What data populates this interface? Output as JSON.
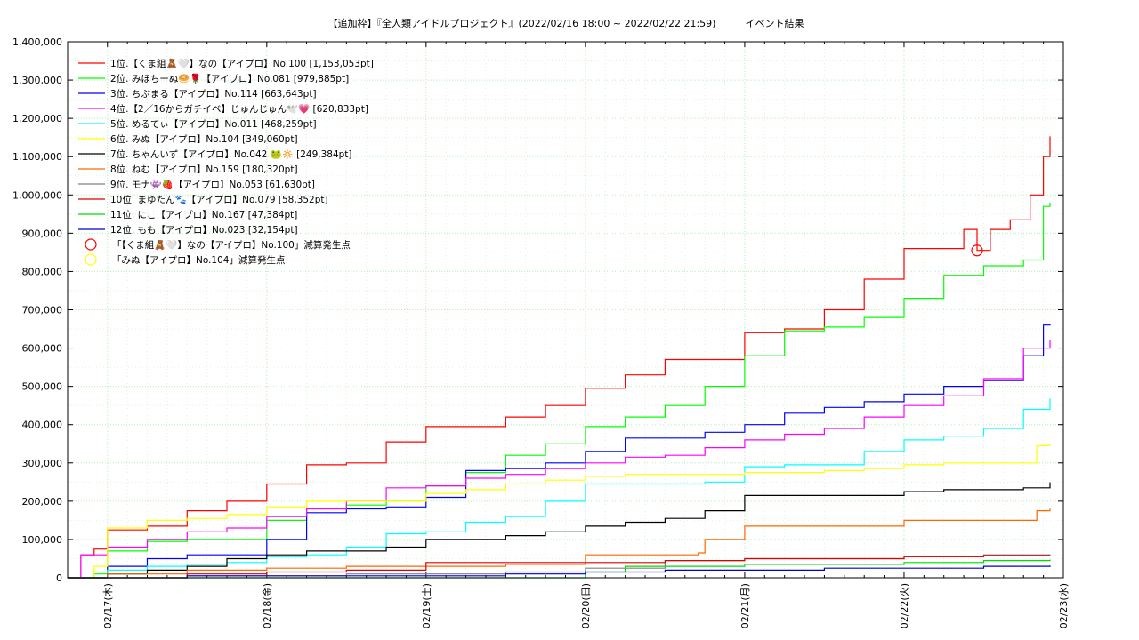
{
  "chart_data": {
    "type": "line",
    "title": "【追加枠】『全人類アイドルプロジェクト』(2022/02/16 18:00 ~ 2022/02/22 21:59)　　　イベント結果",
    "xlabel": "",
    "ylabel": "",
    "ylim": [
      0,
      1400000
    ],
    "yticks": [
      0,
      100000,
      200000,
      300000,
      400000,
      500000,
      600000,
      700000,
      800000,
      900000,
      1000000,
      1100000,
      1200000,
      1300000,
      1400000
    ],
    "ytick_labels": [
      "0",
      "100,000",
      "200,000",
      "300,000",
      "400,000",
      "500,000",
      "600,000",
      "700,000",
      "800,000",
      "900,000",
      "1,000,000",
      "1,100,000",
      "1,200,000",
      "1,300,000",
      "1,400,000"
    ],
    "xlim": [
      "2022/02/16 18:00",
      "2022/02/23 00:00"
    ],
    "xticks": [
      "2022/02/17 00:00",
      "2022/02/18 00:00",
      "2022/02/19 00:00",
      "2022/02/20 00:00",
      "2022/02/21 00:00",
      "2022/02/22 00:00",
      "2022/02/23 00:00"
    ],
    "xtick_labels": [
      "02/17(木)",
      "02/18(金)",
      "02/19(土)",
      "02/20(日)",
      "02/21(月)",
      "02/22(火)",
      "02/23(水)"
    ],
    "grid": true,
    "legend_position": "top-left",
    "series": [
      {
        "name": "1位.【くま組🧸🤍】なの【アイプロ】No.100 [1,153,053pt]",
        "color": "#ff0000",
        "x": [
          "2022/02/16 18:00",
          "2022/02/16 20:00",
          "2022/02/16 22:00",
          "2022/02/17 00:00",
          "2022/02/17 06:00",
          "2022/02/17 12:00",
          "2022/02/17 18:00",
          "2022/02/18 00:00",
          "2022/02/18 06:00",
          "2022/02/18 12:00",
          "2022/02/18 18:00",
          "2022/02/19 00:00",
          "2022/02/19 12:00",
          "2022/02/19 18:00",
          "2022/02/20 00:00",
          "2022/02/20 06:00",
          "2022/02/20 12:00",
          "2022/02/20 18:00",
          "2022/02/21 00:00",
          "2022/02/21 06:00",
          "2022/02/21 12:00",
          "2022/02/21 18:00",
          "2022/02/22 00:00",
          "2022/02/22 06:00",
          "2022/02/22 09:00",
          "2022/02/22 11:00",
          "2022/02/22 13:00",
          "2022/02/22 16:00",
          "2022/02/22 19:00",
          "2022/02/22 21:00",
          "2022/02/22 21:59"
        ],
        "y": [
          0,
          60000,
          75000,
          125000,
          135000,
          175000,
          200000,
          245000,
          295000,
          300000,
          355000,
          395000,
          420000,
          450000,
          495000,
          530000,
          570000,
          570000,
          640000,
          650000,
          700000,
          780000,
          860000,
          860000,
          910000,
          855000,
          910000,
          935000,
          1000000,
          1100000,
          1153053
        ]
      },
      {
        "name": "2位. みほちーぬ🥯🌹【アイプロ】No.081 [979,885pt]",
        "color": "#00ff00",
        "x": [
          "2022/02/16 18:00",
          "2022/02/16 22:00",
          "2022/02/17 00:00",
          "2022/02/17 06:00",
          "2022/02/17 12:00",
          "2022/02/17 18:00",
          "2022/02/18 00:00",
          "2022/02/18 06:00",
          "2022/02/18 12:00",
          "2022/02/18 18:00",
          "2022/02/19 00:00",
          "2022/02/19 06:00",
          "2022/02/19 12:00",
          "2022/02/19 18:00",
          "2022/02/20 00:00",
          "2022/02/20 06:00",
          "2022/02/20 12:00",
          "2022/02/20 18:00",
          "2022/02/21 00:00",
          "2022/02/21 06:00",
          "2022/02/21 12:00",
          "2022/02/21 18:00",
          "2022/02/22 00:00",
          "2022/02/22 06:00",
          "2022/02/22 12:00",
          "2022/02/22 18:00",
          "2022/02/22 21:00",
          "2022/02/22 21:59"
        ],
        "y": [
          0,
          10000,
          70000,
          95000,
          100000,
          100000,
          150000,
          180000,
          190000,
          200000,
          240000,
          275000,
          320000,
          350000,
          395000,
          420000,
          450000,
          500000,
          580000,
          645000,
          655000,
          680000,
          730000,
          790000,
          815000,
          830000,
          970000,
          979885
        ]
      },
      {
        "name": "3位. ちぷまる【アイプロ】No.114 [663,643pt]",
        "color": "#0000ff",
        "x": [
          "2022/02/16 18:00",
          "2022/02/17 00:00",
          "2022/02/17 06:00",
          "2022/02/17 12:00",
          "2022/02/17 18:00",
          "2022/02/18 00:00",
          "2022/02/18 06:00",
          "2022/02/18 12:00",
          "2022/02/18 18:00",
          "2022/02/19 00:00",
          "2022/02/19 06:00",
          "2022/02/19 12:00",
          "2022/02/19 18:00",
          "2022/02/20 00:00",
          "2022/02/20 06:00",
          "2022/02/20 12:00",
          "2022/02/20 18:00",
          "2022/02/21 00:00",
          "2022/02/21 06:00",
          "2022/02/21 12:00",
          "2022/02/21 18:00",
          "2022/02/22 00:00",
          "2022/02/22 06:00",
          "2022/02/22 12:00",
          "2022/02/22 18:00",
          "2022/02/22 21:00",
          "2022/02/22 21:59"
        ],
        "y": [
          0,
          30000,
          50000,
          60000,
          60000,
          100000,
          170000,
          180000,
          185000,
          210000,
          280000,
          285000,
          300000,
          330000,
          365000,
          365000,
          380000,
          400000,
          430000,
          445000,
          460000,
          480000,
          500000,
          515000,
          580000,
          660000,
          663643
        ]
      },
      {
        "name": "4位.【2／16からガチイベ】じゅんじゅん🕊️💗 [620,833pt]",
        "color": "#ff00ff",
        "x": [
          "2022/02/16 18:00",
          "2022/02/16 20:00",
          "2022/02/17 00:00",
          "2022/02/17 06:00",
          "2022/02/17 12:00",
          "2022/02/17 18:00",
          "2022/02/18 00:00",
          "2022/02/18 06:00",
          "2022/02/18 12:00",
          "2022/02/18 18:00",
          "2022/02/19 00:00",
          "2022/02/19 06:00",
          "2022/02/19 12:00",
          "2022/02/19 18:00",
          "2022/02/20 00:00",
          "2022/02/20 06:00",
          "2022/02/20 12:00",
          "2022/02/20 18:00",
          "2022/02/21 00:00",
          "2022/02/21 06:00",
          "2022/02/21 12:00",
          "2022/02/21 18:00",
          "2022/02/22 00:00",
          "2022/02/22 06:00",
          "2022/02/22 12:00",
          "2022/02/22 18:00",
          "2022/02/22 21:59"
        ],
        "y": [
          0,
          60000,
          80000,
          100000,
          120000,
          130000,
          160000,
          180000,
          200000,
          235000,
          240000,
          260000,
          270000,
          285000,
          300000,
          315000,
          320000,
          340000,
          360000,
          375000,
          390000,
          420000,
          450000,
          475000,
          520000,
          600000,
          620833
        ]
      },
      {
        "name": "5位. めるてぃ【アイプロ】No.011 [468,259pt]",
        "color": "#00ffff",
        "x": [
          "2022/02/16 18:00",
          "2022/02/17 00:00",
          "2022/02/17 06:00",
          "2022/02/17 12:00",
          "2022/02/17 18:00",
          "2022/02/18 00:00",
          "2022/02/18 06:00",
          "2022/02/18 12:00",
          "2022/02/18 18:00",
          "2022/02/19 00:00",
          "2022/02/19 06:00",
          "2022/02/19 12:00",
          "2022/02/19 18:00",
          "2022/02/20 00:00",
          "2022/02/20 06:00",
          "2022/02/20 12:00",
          "2022/02/20 18:00",
          "2022/02/21 00:00",
          "2022/02/21 06:00",
          "2022/02/21 12:00",
          "2022/02/21 18:00",
          "2022/02/22 00:00",
          "2022/02/22 06:00",
          "2022/02/22 12:00",
          "2022/02/22 18:00",
          "2022/02/22 21:59"
        ],
        "y": [
          0,
          20000,
          30000,
          35000,
          40000,
          55000,
          60000,
          80000,
          115000,
          120000,
          145000,
          160000,
          200000,
          245000,
          245000,
          245000,
          250000,
          290000,
          295000,
          295000,
          330000,
          360000,
          370000,
          390000,
          440000,
          468259
        ]
      },
      {
        "name": "6位. みぬ【アイプロ】No.104 [349,060pt]",
        "color": "#ffff00",
        "x": [
          "2022/02/16 18:00",
          "2022/02/16 22:00",
          "2022/02/17 00:00",
          "2022/02/17 06:00",
          "2022/02/17 12:00",
          "2022/02/17 18:00",
          "2022/02/18 00:00",
          "2022/02/18 06:00",
          "2022/02/18 12:00",
          "2022/02/18 18:00",
          "2022/02/19 00:00",
          "2022/02/19 06:00",
          "2022/02/19 12:00",
          "2022/02/19 18:00",
          "2022/02/20 00:00",
          "2022/02/20 06:00",
          "2022/02/20 12:00",
          "2022/02/20 18:00",
          "2022/02/21 00:00",
          "2022/02/21 06:00",
          "2022/02/21 12:00",
          "2022/02/21 18:00",
          "2022/02/22 00:00",
          "2022/02/22 06:00",
          "2022/02/22 12:00",
          "2022/02/22 18:00",
          "2022/02/22 20:00",
          "2022/02/22 21:59"
        ],
        "y": [
          0,
          30000,
          130000,
          150000,
          155000,
          165000,
          185000,
          200000,
          200000,
          200000,
          220000,
          230000,
          245000,
          255000,
          265000,
          270000,
          270000,
          270000,
          275000,
          275000,
          280000,
          285000,
          295000,
          300000,
          300000,
          300000,
          345000,
          349060
        ]
      },
      {
        "name": "7位. ちゃんいず【アイプロ】No.042 🐸🔅 [249,384pt]",
        "color": "#000000",
        "x": [
          "2022/02/16 18:00",
          "2022/02/17 00:00",
          "2022/02/17 06:00",
          "2022/02/17 12:00",
          "2022/02/17 18:00",
          "2022/02/18 00:00",
          "2022/02/18 06:00",
          "2022/02/18 12:00",
          "2022/02/18 18:00",
          "2022/02/19 00:00",
          "2022/02/19 06:00",
          "2022/02/19 12:00",
          "2022/02/19 18:00",
          "2022/02/20 00:00",
          "2022/02/20 06:00",
          "2022/02/20 12:00",
          "2022/02/20 18:00",
          "2022/02/21 00:00",
          "2022/02/21 06:00",
          "2022/02/21 12:00",
          "2022/02/21 18:00",
          "2022/02/22 00:00",
          "2022/02/22 06:00",
          "2022/02/22 12:00",
          "2022/02/22 18:00",
          "2022/02/22 21:59"
        ],
        "y": [
          0,
          10000,
          20000,
          30000,
          50000,
          60000,
          70000,
          70000,
          80000,
          100000,
          100000,
          110000,
          120000,
          135000,
          145000,
          155000,
          175000,
          215000,
          215000,
          215000,
          215000,
          225000,
          230000,
          230000,
          235000,
          249384
        ]
      },
      {
        "name": "8位. ねむ【アイプロ】No.159 [180,320pt]",
        "color": "#ff6600",
        "x": [
          "2022/02/16 18:00",
          "2022/02/17 00:00",
          "2022/02/17 12:00",
          "2022/02/18 00:00",
          "2022/02/18 12:00",
          "2022/02/19 00:00",
          "2022/02/19 12:00",
          "2022/02/20 00:00",
          "2022/02/20 12:00",
          "2022/02/20 17:00",
          "2022/02/20 18:00",
          "2022/02/21 00:00",
          "2022/02/21 12:00",
          "2022/02/22 00:00",
          "2022/02/22 12:00",
          "2022/02/22 20:00",
          "2022/02/22 21:59"
        ],
        "y": [
          0,
          10000,
          20000,
          25000,
          30000,
          30000,
          35000,
          60000,
          60000,
          65000,
          100000,
          135000,
          135000,
          150000,
          150000,
          175000,
          180320
        ]
      },
      {
        "name": "9位. モナ👾🍓【アイプロ】No.053 [61,630pt]",
        "color": "#808080",
        "x": [
          "2022/02/16 18:00",
          "2022/02/17 12:00",
          "2022/02/18 12:00",
          "2022/02/19 12:00",
          "2022/02/20 00:00",
          "2022/02/20 12:00",
          "2022/02/21 00:00",
          "2022/02/21 12:00",
          "2022/02/22 00:00",
          "2022/02/22 12:00",
          "2022/02/22 21:59"
        ],
        "y": [
          0,
          5000,
          10000,
          15000,
          25000,
          45000,
          50000,
          50000,
          55000,
          60000,
          61630
        ]
      },
      {
        "name": "10位. まゆたん🐾【アイプロ】No.079 [58,352pt]",
        "color": "#dd0000",
        "x": [
          "2022/02/16 18:00",
          "2022/02/17 12:00",
          "2022/02/18 00:00",
          "2022/02/18 12:00",
          "2022/02/19 00:00",
          "2022/02/19 12:00",
          "2022/02/20 00:00",
          "2022/02/20 12:00",
          "2022/02/21 00:00",
          "2022/02/21 12:00",
          "2022/02/22 00:00",
          "2022/02/22 12:00",
          "2022/02/22 21:59"
        ],
        "y": [
          0,
          10000,
          15000,
          20000,
          40000,
          40000,
          40000,
          45000,
          50000,
          50000,
          55000,
          58000,
          58352
        ]
      },
      {
        "name": "11位. にこ【アイプロ】No.167 [47,384pt]",
        "color": "#00dd00",
        "x": [
          "2022/02/16 18:00",
          "2022/02/18 00:00",
          "2022/02/19 00:00",
          "2022/02/20 00:00",
          "2022/02/20 06:00",
          "2022/02/21 00:00",
          "2022/02/21 12:00",
          "2022/02/22 00:00",
          "2022/02/22 12:00",
          "2022/02/22 21:59"
        ],
        "y": [
          0,
          0,
          0,
          15000,
          30000,
          35000,
          35000,
          40000,
          45000,
          47384
        ]
      },
      {
        "name": "12位. もも【アイプロ】No.023 [32,154pt]",
        "color": "#0000cc",
        "x": [
          "2022/02/16 18:00",
          "2022/02/17 12:00",
          "2022/02/18 12:00",
          "2022/02/19 12:00",
          "2022/02/20 00:00",
          "2022/02/20 12:00",
          "2022/02/21 00:00",
          "2022/02/21 12:00",
          "2022/02/22 00:00",
          "2022/02/22 12:00",
          "2022/02/22 21:59"
        ],
        "y": [
          0,
          5000,
          5000,
          10000,
          15000,
          20000,
          20000,
          25000,
          25000,
          30000,
          32154
        ]
      }
    ],
    "markers": [
      {
        "name": "「【くま組🧸🤍】なの【アイプロ】No.100」減算発生点",
        "color": "#ff0000",
        "x": "2022/02/22 11:00",
        "y": 855000
      },
      {
        "name": "「みぬ【アイプロ】No.104」減算発生点",
        "color": "#ffff00",
        "x": null,
        "y": null
      }
    ]
  }
}
